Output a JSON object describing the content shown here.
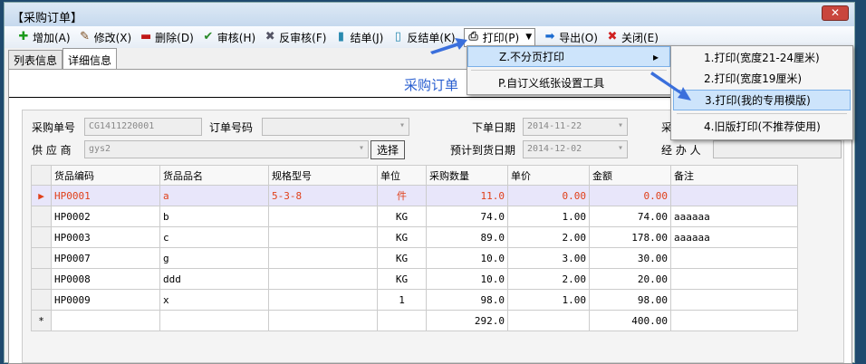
{
  "window": {
    "title": "【采购订单】",
    "close": "✕"
  },
  "toolbar": [
    {
      "label": "增加(A)",
      "icon": "plus-icon"
    },
    {
      "label": "修改(X)",
      "icon": "edit-icon"
    },
    {
      "label": "删除(D)",
      "icon": "minus-icon"
    },
    {
      "label": "审核(H)",
      "icon": "check-icon"
    },
    {
      "label": "反审核(F)",
      "icon": "x-icon"
    },
    {
      "label": "结单(J)",
      "icon": "book-icon"
    },
    {
      "label": "反结单(K)",
      "icon": "book-open-icon"
    },
    {
      "label": "打印(P)",
      "icon": "printer-icon"
    },
    {
      "label": "导出(O)",
      "icon": "arrow-right-icon"
    },
    {
      "label": "关闭(E)",
      "icon": "close-circle-icon"
    }
  ],
  "tabs": [
    "列表信息",
    "详细信息"
  ],
  "form": {
    "title": "采购订单",
    "order_no_label": "采购单号",
    "order_no": "CG1411220001",
    "order_code_label": "订单号码",
    "order_date_label": "下单日期",
    "order_date": "2014-11-22",
    "buyer_label": "采",
    "supplier_label": "供 应 商",
    "supplier": "gys2",
    "select_btn": "选择",
    "arrival_label": "预计到货日期",
    "arrival_date": "2014-12-02",
    "handler_label": "经 办 人"
  },
  "grid": {
    "columns": [
      "货品编码",
      "货品品名",
      "规格型号",
      "单位",
      "采购数量",
      "单价",
      "金额",
      "备注"
    ],
    "rows": [
      [
        "HP0001",
        "a",
        "5-3-8",
        "件",
        "11.0",
        "0.00",
        "0.00",
        ""
      ],
      [
        "HP0002",
        "b",
        "",
        "KG",
        "74.0",
        "1.00",
        "74.00",
        "aaaaaa"
      ],
      [
        "HP0003",
        "c",
        "",
        "KG",
        "89.0",
        "2.00",
        "178.00",
        "aaaaaa"
      ],
      [
        "HP0007",
        "g",
        "",
        "KG",
        "10.0",
        "3.00",
        "30.00",
        ""
      ],
      [
        "HP0008",
        "ddd",
        "",
        "KG",
        "10.0",
        "2.00",
        "20.00",
        ""
      ],
      [
        "HP0009",
        "x",
        "",
        "1",
        "98.0",
        "1.00",
        "98.00",
        ""
      ]
    ],
    "total": {
      "marker": "*",
      "qty": "292.0",
      "amount": "400.00"
    },
    "current_marker": "▶"
  },
  "print_menu": {
    "items": [
      "Z.不分页打印",
      "P.自订义纸张设置工具"
    ],
    "submenu": [
      "1.打印(宽度21-24厘米)",
      "2.打印(宽度19厘米)",
      "3.打印(我的专用模版)",
      "4.旧版打印(不推荐使用)"
    ]
  }
}
